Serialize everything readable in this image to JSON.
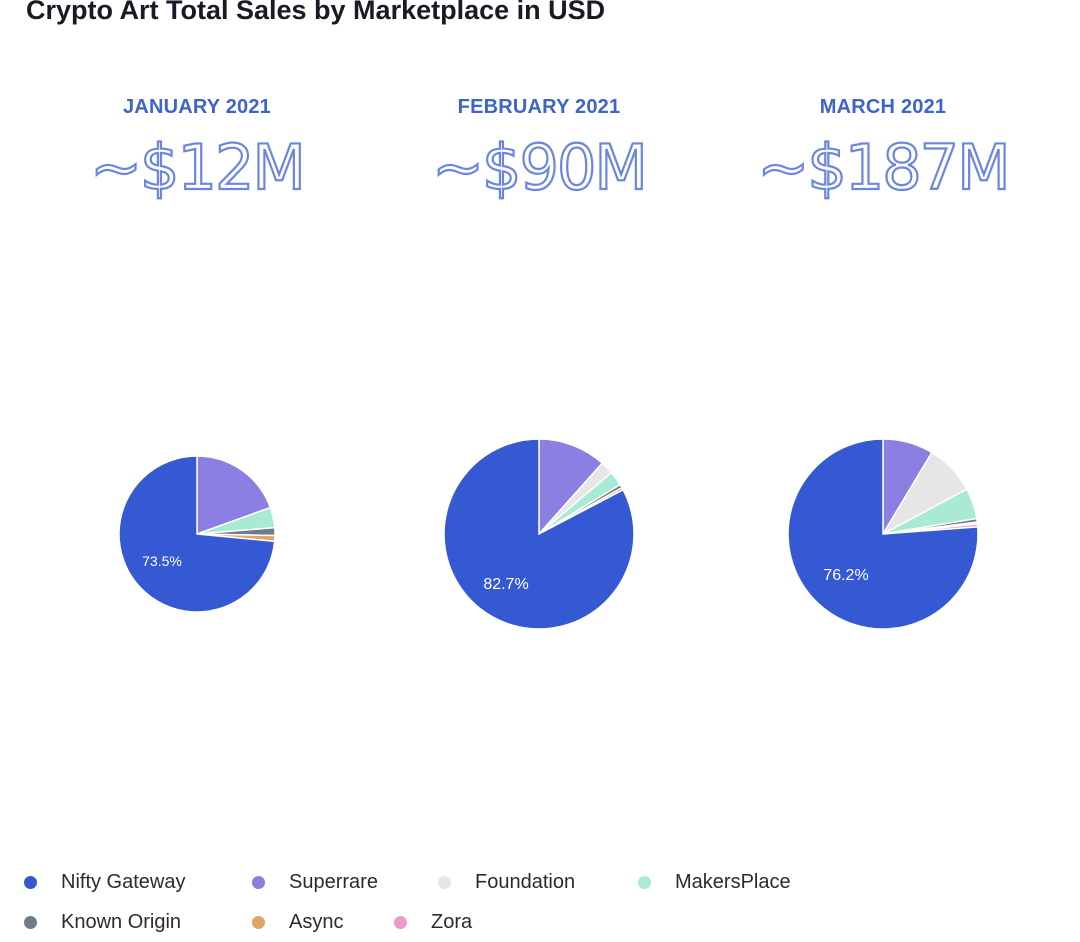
{
  "title": "Crypto Art Total Sales by Marketplace in USD",
  "panels": [
    {
      "month": "JANUARY 2021",
      "total": "~$12M"
    },
    {
      "month": "FEBRUARY 2021",
      "total": "~$90M"
    },
    {
      "month": "MARCH 2021",
      "total": "~$187M"
    }
  ],
  "chart_data": [
    {
      "type": "pie",
      "title": "JANUARY 2021",
      "categories": [
        "Nifty Gateway",
        "Superrare",
        "Foundation",
        "MakersPlace",
        "Known Origin",
        "Async",
        "Zora"
      ],
      "values": [
        73.5,
        19.5,
        0,
        4.2,
        1.6,
        1.2,
        0
      ],
      "data_labels": [
        "73.5%",
        "",
        "",
        "",
        "",
        "",
        ""
      ]
    },
    {
      "type": "pie",
      "title": "FEBRUARY 2021",
      "categories": [
        "Nifty Gateway",
        "Superrare",
        "Foundation",
        "MakersPlace",
        "Known Origin",
        "Async",
        "Zora"
      ],
      "values": [
        82.7,
        11.6,
        2.2,
        2.5,
        0.6,
        0.4,
        0
      ],
      "data_labels": [
        "82.7%",
        "",
        "",
        "",
        "",
        "",
        ""
      ]
    },
    {
      "type": "pie",
      "title": "MARCH 2021",
      "categories": [
        "Nifty Gateway",
        "Superrare",
        "Foundation",
        "MakersPlace",
        "Known Origin",
        "Async",
        "Zora"
      ],
      "values": [
        76.2,
        8.6,
        8.6,
        5.2,
        0.6,
        0.3,
        0.5
      ],
      "data_labels": [
        "76.2%",
        "",
        "",
        "",
        "",
        "",
        ""
      ]
    }
  ],
  "legend": [
    {
      "label": "Nifty Gateway",
      "color": "#3459d3"
    },
    {
      "label": "Superrare",
      "color": "#8b80e2"
    },
    {
      "label": "Foundation",
      "color": "#e6e6e6"
    },
    {
      "label": "MakersPlace",
      "color": "#a8ead3"
    },
    {
      "label": "Known Origin",
      "color": "#6e7c89"
    },
    {
      "label": "Async",
      "color": "#e3a465"
    },
    {
      "label": "Zora",
      "color": "#e89ccb"
    }
  ],
  "legend_position": "bottom"
}
